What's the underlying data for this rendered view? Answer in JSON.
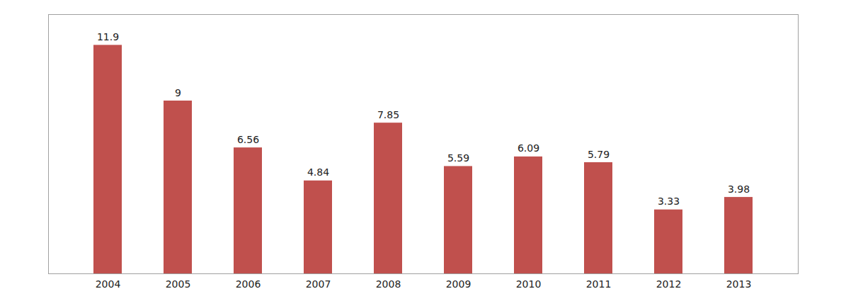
{
  "chart_data": {
    "type": "bar",
    "categories": [
      "2004",
      "2005",
      "2006",
      "2007",
      "2008",
      "2009",
      "2010",
      "2011",
      "2012",
      "2013"
    ],
    "values": [
      11.9,
      9,
      6.56,
      4.84,
      7.85,
      5.59,
      6.09,
      5.79,
      3.33,
      3.98
    ],
    "color": "#c0504d",
    "ylim": [
      0,
      13.5
    ],
    "grid": false,
    "data_labels": true,
    "tick_labels": "x"
  }
}
